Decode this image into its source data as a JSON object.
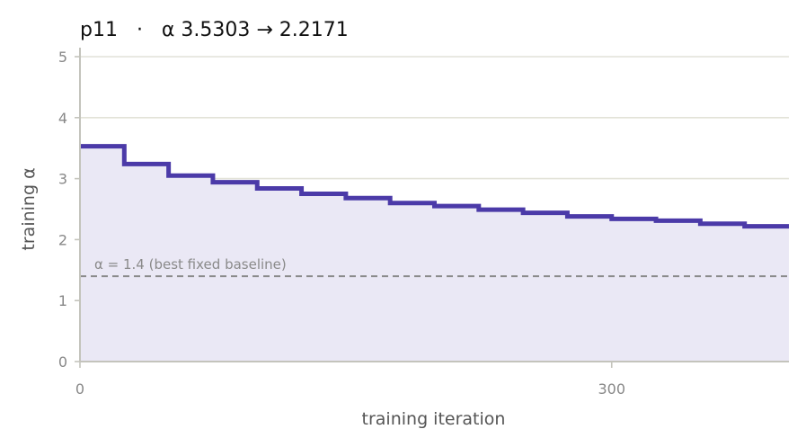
{
  "chart_data": {
    "type": "line",
    "title": "p11   ·   α 3.5303 → 2.2171",
    "xlabel": "training iteration",
    "ylabel": "training α",
    "xlim": [
      0,
      400
    ],
    "ylim": [
      0,
      5
    ],
    "xticks": [
      0,
      300
    ],
    "yticks": [
      0,
      1,
      2,
      3,
      4,
      5
    ],
    "grid": "horizontal",
    "colors": {
      "line": "#4b3aa8",
      "fill": "#eae8f5",
      "grid": "#e2e2d8",
      "baseline": "#8a8a8a",
      "axis": "#c4c4bc"
    },
    "series": [
      {
        "step": "post",
        "x": [
          0,
          25,
          50,
          75,
          100,
          125,
          150,
          175,
          200,
          225,
          250,
          275,
          300,
          325,
          350,
          375,
          400
        ],
        "values": [
          3.5303,
          3.24,
          3.05,
          2.94,
          2.84,
          2.75,
          2.68,
          2.6,
          2.55,
          2.49,
          2.44,
          2.38,
          2.34,
          2.31,
          2.26,
          2.2171,
          2.2171
        ]
      }
    ],
    "annotations": [
      {
        "type": "hline",
        "y": 1.4,
        "style": "dashed",
        "label": "α = 1.4 (best fixed baseline)"
      }
    ]
  }
}
